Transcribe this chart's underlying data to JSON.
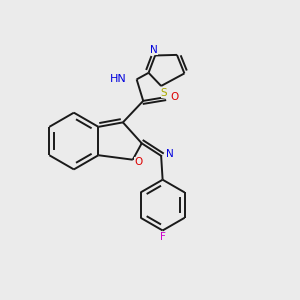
{
  "background_color": "#ebebeb",
  "bond_color": "#1a1a1a",
  "atom_colors": {
    "N": "#0000dd",
    "O": "#dd0000",
    "S": "#aaaa00",
    "F": "#cc00cc",
    "H": "#888888",
    "C": "#1a1a1a"
  },
  "figsize": [
    3.0,
    3.0
  ],
  "dpi": 100,
  "lw": 1.4,
  "fontsize": 7.5
}
